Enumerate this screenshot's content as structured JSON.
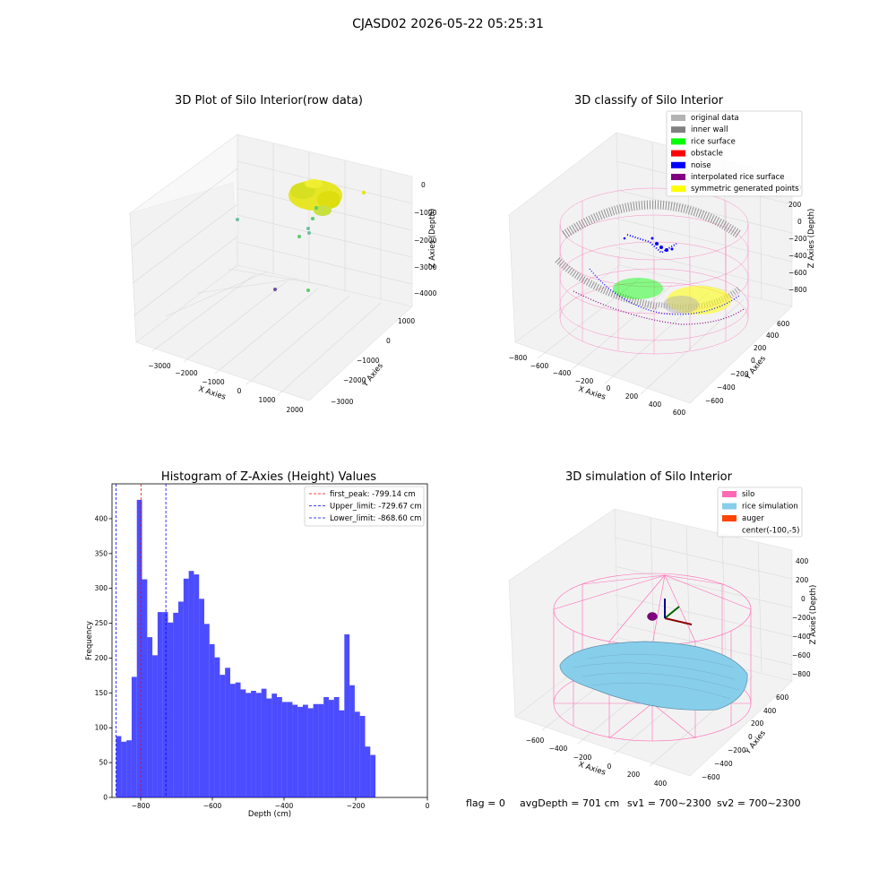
{
  "suptitle": "CJASD02 2026-05-22 05:25:31",
  "footer": {
    "flag": "flag = 0",
    "avg": "avgDepth = 701 cm",
    "sv1": "sv1 = 700~2300",
    "sv2": "sv2 = 700~2300"
  },
  "chart_data": [
    {
      "type": "scatter",
      "title": "3D Plot of Silo Interior(row data)",
      "xlabel": "X Axies",
      "ylabel": "Y Axies",
      "zlabel": "Z Axies (Depth)",
      "x_ticks": [
        "−3000",
        "−2000",
        "−1000",
        "0",
        "1000",
        "2000"
      ],
      "y_ticks": [
        "−3000",
        "−2000",
        "−1000",
        "0",
        "1000"
      ],
      "z_ticks": [
        "0",
        "−1000",
        "−2000",
        "−3000",
        "−4000"
      ],
      "colors": {
        "cluster": "#e5e51a",
        "outlier_green": "#5ccc6a",
        "outlier_teal": "#6fbfa0",
        "outlier_purple": "#6a4fa0"
      }
    },
    {
      "type": "scatter",
      "title": "3D classify of Silo Interior",
      "x_ticks": [
        "−800",
        "−600",
        "−400",
        "−200",
        "0",
        "200",
        "400",
        "600"
      ],
      "y_ticks": [
        "−600",
        "−400",
        "−200",
        "0",
        "200",
        "400",
        "600"
      ],
      "z_ticks": [
        "200",
        "0",
        "−200",
        "−400",
        "−600",
        "−800"
      ],
      "xlabel": "X Axies",
      "ylabel": "Y Axies",
      "zlabel": "Z Axies (Depth)",
      "legend": [
        {
          "label": "original data",
          "color": "#b3b3b3"
        },
        {
          "label": "inner wall",
          "color": "#808080"
        },
        {
          "label": "rice surface",
          "color": "#00ff00"
        },
        {
          "label": "obstacle",
          "color": "#ff0000"
        },
        {
          "label": "noise",
          "color": "#0000ff"
        },
        {
          "label": "interpolated rice surface",
          "color": "#800080"
        },
        {
          "label": "symmetric generated points",
          "color": "#ffff00"
        }
      ]
    },
    {
      "type": "bar",
      "title": "Histogram of Z-Axies (Height) Values",
      "xlabel": "Depth (cm)",
      "ylabel": "Frequency",
      "xlim": [
        -880,
        0
      ],
      "ylim": [
        0,
        450
      ],
      "x_ticks": [
        -800,
        -600,
        -400,
        -200,
        0
      ],
      "x_tick_labels": [
        "−800",
        "−600",
        "−400",
        "−200",
        "0"
      ],
      "y_ticks": [
        0,
        50,
        100,
        150,
        200,
        250,
        300,
        350,
        400
      ],
      "bin_start": -868.6,
      "bin_width": 14.475,
      "values": [
        88,
        80,
        82,
        173,
        427,
        313,
        230,
        204,
        266,
        266,
        251,
        265,
        281,
        314,
        325,
        320,
        285,
        249,
        220,
        201,
        176,
        186,
        163,
        165,
        155,
        150,
        153,
        150,
        156,
        142,
        149,
        144,
        137,
        137,
        133,
        130,
        133,
        128,
        134,
        134,
        144,
        140,
        144,
        125,
        234,
        161,
        123,
        117,
        73,
        61
      ],
      "color": "#0000ff",
      "vlines": [
        {
          "label": "first_peak: -799.14 cm",
          "x": -799.14,
          "color": "#ff0000"
        },
        {
          "label": "Upper_limit: -729.67 cm",
          "x": -729.67,
          "color": "#0000ff"
        },
        {
          "label": "Lower_limit: -868.60 cm",
          "x": -868.6,
          "color": "#0000ff"
        }
      ],
      "legend_position": "top-right"
    },
    {
      "type": "area",
      "title": "3D simulation of Silo Interior",
      "xlabel": "X Axies",
      "ylabel": "Y Axies",
      "zlabel": "Z Axies (Depth)",
      "x_ticks": [
        "−600",
        "−400",
        "−200",
        "0",
        "200",
        "400"
      ],
      "y_ticks": [
        "−600",
        "−400",
        "−200",
        "0",
        "200",
        "400",
        "600"
      ],
      "z_ticks": [
        "400",
        "200",
        "0",
        "−200",
        "−400",
        "−600",
        "−800"
      ],
      "legend": [
        {
          "label": "silo",
          "color": "#ff69b4"
        },
        {
          "label": "rice simulation",
          "color": "#87ceeb"
        },
        {
          "label": "auger",
          "color": "#ff4500"
        },
        {
          "label": "center(-100,-5)",
          "color": ""
        }
      ]
    }
  ]
}
